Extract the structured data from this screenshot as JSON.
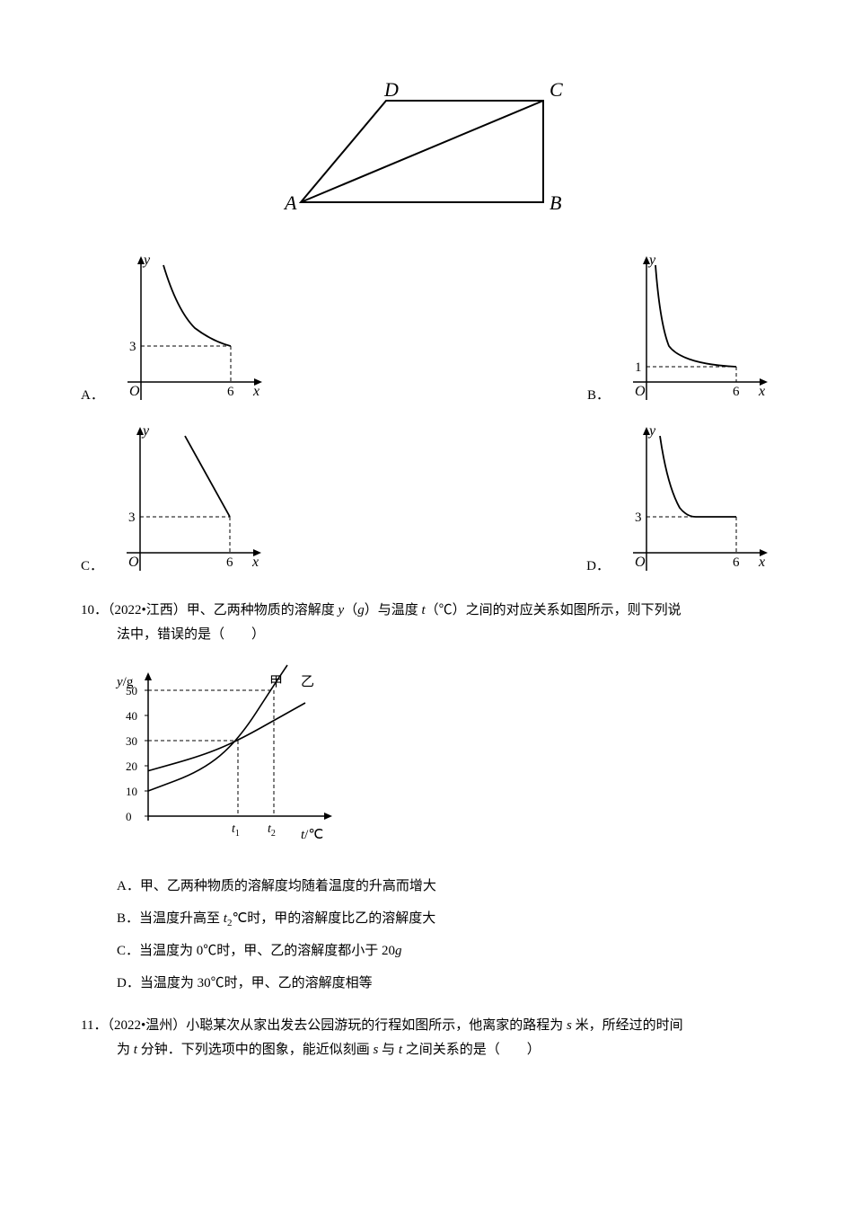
{
  "parallelogram": {
    "label_D": "D",
    "label_C": "C",
    "label_A": "A",
    "label_B": "B",
    "stroke": "#000000",
    "stroke_width": 2,
    "label_font": "italic 22px Times New Roman"
  },
  "mini_charts": {
    "A": {
      "label": "A．",
      "type": "curve_decreasing_steep",
      "y_mark": "3",
      "x_mark": "6",
      "y_label": "y",
      "x_label": "x",
      "origin": "O",
      "stroke": "#000000",
      "dashed": "#000000",
      "point_x": 6,
      "point_y": 3
    },
    "B": {
      "label": "B．",
      "type": "curve_decreasing_flat",
      "y_mark": "1",
      "x_mark": "6",
      "y_label": "y",
      "x_label": "x",
      "origin": "O",
      "stroke": "#000000",
      "dashed": "#000000",
      "point_x": 6,
      "point_y": 1
    },
    "C": {
      "label": "C．",
      "type": "line_decreasing",
      "y_mark": "3",
      "x_mark": "6",
      "y_label": "y",
      "x_label": "x",
      "origin": "O",
      "stroke": "#000000",
      "dashed": "#000000",
      "point_x": 6,
      "point_y": 3
    },
    "D": {
      "label": "D．",
      "type": "curve_then_flat",
      "y_mark": "3",
      "x_mark": "6",
      "y_label": "y",
      "x_label": "x",
      "origin": "O",
      "stroke": "#000000",
      "dashed": "#000000",
      "point_x": 6,
      "point_y": 3
    }
  },
  "q10": {
    "number": "10．",
    "source": "（2022•江西）",
    "text_part1": "甲、乙两种物质的溶解度 ",
    "y_var": "y",
    "text_part2": "（",
    "g_var": "g",
    "text_part3": "）与温度 ",
    "t_var": "t",
    "text_part4": "（℃）之间的对应关系如图所示，则下列说",
    "text_line2": "法中，错误的是（　　）",
    "chart": {
      "y_label_prefix": "y",
      "y_label_suffix": "/g",
      "x_label_prefix": "t",
      "x_label_suffix": "/℃",
      "series_labels": {
        "jia": "甲",
        "yi": "乙"
      },
      "y_ticks": [
        "0",
        "10",
        "20",
        "30",
        "40",
        "50"
      ],
      "x_ticks": [
        "t₁",
        "t₂"
      ],
      "y_max": 50,
      "axis_color": "#000000",
      "grid": false,
      "series_jia": {
        "color": "#000000",
        "points": [
          [
            0,
            10
          ],
          [
            60,
            18
          ],
          [
            100,
            30
          ],
          [
            140,
            52
          ],
          [
            155,
            60
          ]
        ]
      },
      "series_yi": {
        "color": "#000000",
        "points": [
          [
            0,
            18
          ],
          [
            60,
            24
          ],
          [
            100,
            30
          ],
          [
            150,
            40
          ],
          [
            175,
            45
          ]
        ]
      },
      "dashed_lines": [
        {
          "x": 100,
          "y": 30
        },
        {
          "x": 140,
          "y": 50
        }
      ],
      "font_size": 13
    },
    "options": {
      "A": "A．甲、乙两种物质的溶解度均随着温度的升高而增大",
      "B_prefix": "B．当温度升高至 ",
      "B_t2": "t",
      "B_sub": "2",
      "B_suffix": "℃时，甲的溶解度比乙的溶解度大",
      "C_prefix": "C．当温度为 0℃时，甲、乙的溶解度都小于 20",
      "C_g": "g",
      "D": "D．当温度为 30℃时，甲、乙的溶解度相等"
    }
  },
  "q11": {
    "number": "11．",
    "source": "（2022•温州）",
    "text_part1": "小聪某次从家出发去公园游玩的行程如图所示，他离家的路程为 ",
    "s_var": "s",
    "text_part2": " 米，所经过的时间",
    "text_line2_prefix": "为 ",
    "t_var": "t",
    "text_line2_mid": " 分钟．下列选项中的图象，能近似刻画 ",
    "s_var2": "s",
    "text_line2_mid2": " 与 ",
    "t_var2": "t",
    "text_line2_suffix": " 之间关系的是（　　）"
  }
}
